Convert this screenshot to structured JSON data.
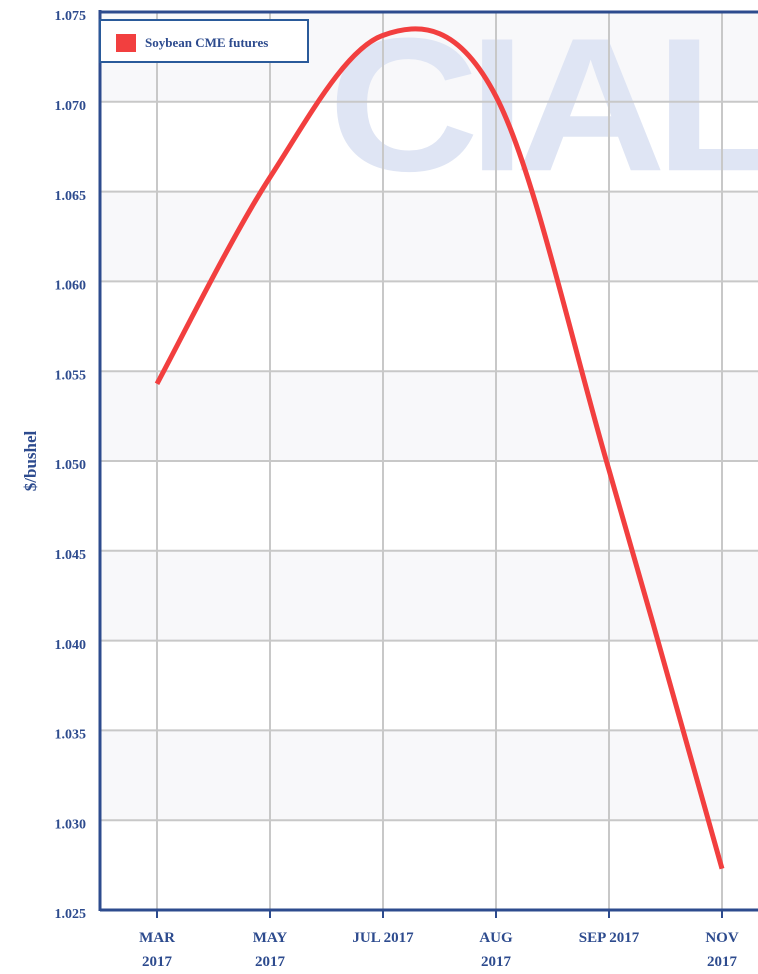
{
  "chart_data": {
    "type": "line",
    "watermark": "CIAL",
    "ylabel": "$/bushel",
    "categories": [
      "MAR 2017",
      "MAY 2017",
      "JUL 2017",
      "AUG 2017",
      "SEP 2017",
      "NOV 2017"
    ],
    "series": [
      {
        "name": "Soybean CME futures",
        "color": "#f23f3f",
        "values": [
          1.0543,
          1.0658,
          1.0737,
          1.0703,
          1.0495,
          1.0273
        ]
      }
    ],
    "ylim": [
      1.025,
      1.075
    ],
    "yticks": [
      {
        "value": 1.025,
        "label": "1.025"
      },
      {
        "value": 1.03,
        "label": "1.030"
      },
      {
        "value": 1.035,
        "label": "1.035"
      },
      {
        "value": 1.04,
        "label": "1.040"
      },
      {
        "value": 1.045,
        "label": "1.045"
      },
      {
        "value": 1.05,
        "label": "1.050"
      },
      {
        "value": 1.055,
        "label": "1.055"
      },
      {
        "value": 1.06,
        "label": "1.060"
      },
      {
        "value": 1.065,
        "label": "1.065"
      },
      {
        "value": 1.07,
        "label": "1.070"
      },
      {
        "value": 1.075,
        "label": "1.075"
      }
    ],
    "grid": true,
    "legend": "top-left"
  }
}
